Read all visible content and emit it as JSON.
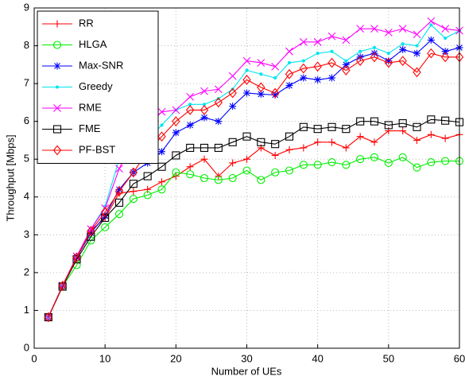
{
  "chart_data": {
    "type": "line",
    "xlabel": "Number of UEs",
    "ylabel": "Throughput [Mbps]",
    "x": [
      2,
      4,
      6,
      8,
      10,
      12,
      14,
      16,
      18,
      20,
      22,
      24,
      26,
      28,
      30,
      32,
      34,
      36,
      38,
      40,
      42,
      44,
      46,
      48,
      50,
      52,
      54,
      56,
      58,
      60
    ],
    "xlim": [
      0,
      60
    ],
    "xticks": [
      0,
      10,
      20,
      30,
      40,
      50,
      60
    ],
    "ylim": [
      0,
      9
    ],
    "yticks": [
      0,
      1,
      2,
      3,
      4,
      5,
      6,
      7,
      8,
      9
    ],
    "grid": true,
    "legend": "upper-left",
    "series": [
      {
        "name": "RR",
        "color": "#ff0000",
        "marker": "plus",
        "values": [
          0.82,
          1.65,
          2.4,
          3.1,
          3.45,
          4.1,
          4.15,
          4.2,
          4.4,
          4.55,
          4.8,
          5.0,
          4.55,
          4.9,
          5.0,
          5.3,
          5.1,
          5.25,
          5.3,
          5.45,
          5.45,
          5.3,
          5.6,
          5.45,
          5.75,
          5.75,
          5.5,
          5.65,
          5.55,
          5.65
        ]
      },
      {
        "name": "HLGA",
        "color": "#00ee00",
        "marker": "circle",
        "values": [
          0.82,
          1.63,
          2.2,
          2.85,
          3.2,
          3.55,
          3.95,
          4.05,
          4.2,
          4.65,
          4.6,
          4.5,
          4.45,
          4.5,
          4.7,
          4.45,
          4.65,
          4.7,
          4.85,
          4.85,
          4.92,
          4.85,
          5.0,
          5.05,
          4.9,
          5.05,
          4.78,
          4.92,
          4.95,
          4.95
        ]
      },
      {
        "name": "Max-SNR",
        "color": "#0000ff",
        "marker": "star",
        "values": [
          0.82,
          1.65,
          2.4,
          3.05,
          3.5,
          4.2,
          4.65,
          4.9,
          5.2,
          5.7,
          5.9,
          6.1,
          6.0,
          6.4,
          6.75,
          6.72,
          6.7,
          6.95,
          7.15,
          7.1,
          7.15,
          7.5,
          7.7,
          7.8,
          7.6,
          7.9,
          7.8,
          8.15,
          7.85,
          7.95
        ]
      },
      {
        "name": "Greedy",
        "color": "#00e5ee",
        "marker": "dot",
        "values": [
          0.82,
          1.66,
          2.43,
          3.15,
          3.75,
          5.0,
          5.25,
          5.5,
          5.9,
          6.3,
          6.45,
          6.45,
          6.6,
          6.85,
          7.35,
          7.25,
          7.15,
          7.55,
          7.6,
          7.8,
          7.85,
          7.6,
          7.85,
          7.95,
          7.8,
          8.05,
          8.0,
          8.55,
          8.2,
          8.4
        ]
      },
      {
        "name": "RME",
        "color": "#ff00ff",
        "marker": "cross",
        "values": [
          0.82,
          1.66,
          2.43,
          3.15,
          3.7,
          4.75,
          5.55,
          5.95,
          6.25,
          6.3,
          6.65,
          6.8,
          6.85,
          7.2,
          7.6,
          7.55,
          7.45,
          7.85,
          8.1,
          8.1,
          8.25,
          8.15,
          8.45,
          8.45,
          8.35,
          8.45,
          8.3,
          8.65,
          8.45,
          8.4
        ]
      },
      {
        "name": "FME",
        "color": "#000000",
        "marker": "square",
        "values": [
          0.82,
          1.63,
          2.35,
          2.95,
          3.45,
          3.85,
          4.35,
          4.55,
          4.8,
          5.1,
          5.3,
          5.3,
          5.3,
          5.45,
          5.6,
          5.45,
          5.4,
          5.6,
          5.85,
          5.8,
          5.85,
          5.8,
          6.0,
          6.0,
          5.9,
          5.95,
          5.85,
          6.05,
          6.02,
          5.98
        ]
      },
      {
        "name": "PF-BST",
        "color": "#ff0000",
        "marker": "diamond",
        "values": [
          0.82,
          1.65,
          2.4,
          3.1,
          3.6,
          4.15,
          4.65,
          5.2,
          5.6,
          6.0,
          6.3,
          6.3,
          6.5,
          6.75,
          7.1,
          6.9,
          6.75,
          7.25,
          7.4,
          7.45,
          7.55,
          7.35,
          7.6,
          7.7,
          7.55,
          7.6,
          7.3,
          7.8,
          7.7,
          7.7
        ]
      }
    ]
  }
}
